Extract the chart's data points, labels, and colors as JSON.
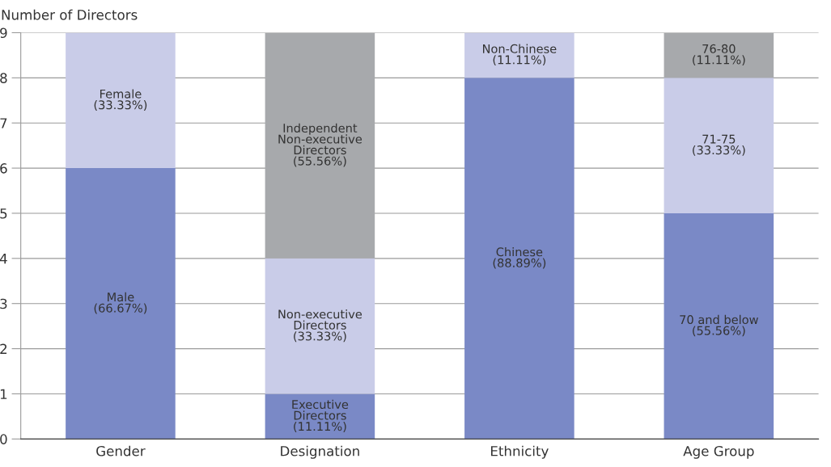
{
  "chart_data": {
    "type": "bar",
    "stacked": true,
    "ylabel": "Number of Directors",
    "categories": [
      "Gender",
      "Designation",
      "Ethnicity",
      "Age Group"
    ],
    "ylim": [
      0,
      9
    ],
    "yticks": [
      0,
      1,
      2,
      3,
      4,
      5,
      6,
      7,
      8,
      9
    ],
    "grid": "y",
    "series": [
      {
        "color": "#7a89c6",
        "values": [
          6,
          1,
          8,
          5
        ]
      },
      {
        "color": "#c9cce8",
        "values": [
          3,
          3,
          1,
          3
        ]
      },
      {
        "color": "#a7a9ac",
        "values": [
          0,
          5,
          0,
          1
        ]
      }
    ],
    "annotations": [
      "Male\n(66.67%)",
      "Female\n(33.33%)",
      "Executive\nDirectors\n(11.11%)",
      "Non-executive\nDirectors\n(33.33%)",
      "Independent\nNon-executive\nDirectors\n(55.56%)",
      "Chinese\n(88.89%)",
      "Non-Chinese\n(11.11%)",
      "70 and below\n(55.56%)",
      "71-75\n(33.33%)",
      "76-80\n(11.11%)"
    ]
  }
}
